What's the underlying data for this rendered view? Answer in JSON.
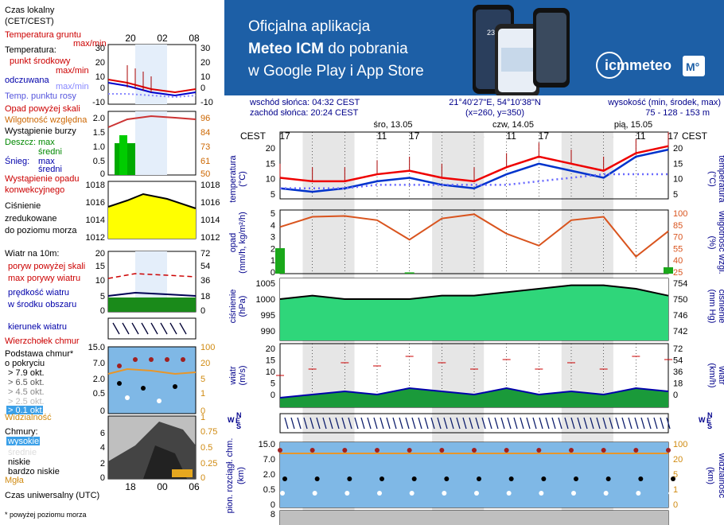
{
  "banner": {
    "line1": "Oficjalna aplikacja",
    "line2a": "Meteo ICM",
    "line2b": " do pobrania",
    "line3": "w Google Play i App Store",
    "brand": "icmmeteo",
    "brand_badge": "M°",
    "phone_temp": "23°"
  },
  "header": {
    "sunrise": "wschód słońca: 04:32 CEST",
    "sunset": "zachód słońca: 20:24 CEST",
    "coords": "21°40'27\"E, 54°10'38\"N",
    "grid": "(x=260, y=350)",
    "elev_label": "wysokość (min, środek, max)",
    "elev_values": "75 - 128 - 153 m",
    "tz_left": "CEST",
    "tz_right": "CEST",
    "days": [
      "śro, 13.05",
      "czw, 14.05",
      "pią, 15.05"
    ],
    "hours": [
      "17",
      "23",
      "05",
      "11",
      "17",
      "23",
      "05",
      "11",
      "17",
      "23",
      "05",
      "11",
      "17"
    ]
  },
  "legend": {
    "time_local": "Czas lokalny",
    "time_local2": "(CET/CEST)",
    "hours_top": [
      "20",
      "02",
      "08"
    ],
    "ground_temp": "Temperatura gruntu",
    "ground_temp2": "max/min",
    "temp": "Temperatura:",
    "temp_mid": "punkt środkowy",
    "temp_range": "max/min",
    "feels": "odczuwana",
    "feels_range": "max/min",
    "dew": "Temp. punktu rosy",
    "temp_ticks": [
      "30",
      "20",
      "10",
      "0",
      "-10"
    ],
    "precip_above": "Opad powyżej skali",
    "humidity": "Wilgotność względna",
    "storm": "Wystąpienie burzy",
    "rain": "Deszcz:",
    "max": "max",
    "avg": "średni",
    "snow": "Śnieg:",
    "precip_occ": "Wystąpienie opadu",
    "convective": "konwekcyjnego",
    "precip_ticks": [
      "2.0",
      "1.5",
      "1.0",
      "0.5",
      "0"
    ],
    "hum_ticks": [
      "96",
      "84",
      "73",
      "61",
      "50"
    ],
    "pressure": "Ciśnienie",
    "pressure2": "zredukowane",
    "pressure3": "do poziomu morza",
    "press_ticks": [
      "1018",
      "1016",
      "1014",
      "1012"
    ],
    "wind10": "Wiatr na 10m:",
    "gust_above": "poryw powyżej skali",
    "gust_max": "max porywy wiatru",
    "wind_avg": "prędkość wiatru",
    "wind_avg2": "w środku obszaru",
    "wind_ticks": [
      "20",
      "15",
      "10",
      "5",
      "0"
    ],
    "wind_ticks_r": [
      "72",
      "54",
      "36",
      "18",
      "0"
    ],
    "wind_dir": "kierunek wiatru",
    "cloud_top": "Wierzchołek chmur",
    "cloud_base": "Podstawa chmur*",
    "cloud_cov": "o pokryciu",
    "okt": [
      "> 7.9 okt.",
      "> 6.5 okt.",
      "> 4.5 okt.",
      "> 2.5 okt.",
      "> 0.1 okt."
    ],
    "cb_ticks": [
      "15.0",
      "7.0",
      "2.0",
      "0.5",
      "0"
    ],
    "vis_ticks": [
      "100",
      "20",
      "5",
      "1",
      "0"
    ],
    "visibility": "Widzialność",
    "clouds": "Chmury:",
    "high": "wysokie",
    "mid": "średnie",
    "low": "niskie",
    "vlow": "bardzo niskie",
    "fog": "Mgła",
    "cl_ticks": [
      "8",
      "6",
      "4",
      "2",
      "0"
    ],
    "fog_ticks": [
      "1",
      "0.75",
      "0.5",
      "0.25",
      "0"
    ],
    "utc": "Czas uniwersalny (UTC)",
    "hours_bottom": [
      "18",
      "00",
      "06"
    ],
    "footnote": "* powyżej poziomu morza"
  },
  "axes": {
    "temp_l": "temperatura",
    "temp_lu": "(°C)",
    "temp_ticks": [
      "20",
      "15",
      "10",
      "5"
    ],
    "precip_l": "opad",
    "precip_lu": "(mm/h, kg/m²/h)",
    "precip_ticks": [
      "5",
      "4",
      "3",
      "2",
      "1",
      "0"
    ],
    "hum_r": "wilgotność wzgl.",
    "hum_ru": "(%)",
    "hum_ticks": [
      "100",
      "85",
      "70",
      "55",
      "40",
      "25"
    ],
    "press_l": "ciśnienie",
    "press_lu": "(hPa)",
    "press_ticks": [
      "1005",
      "1000",
      "995",
      "990"
    ],
    "press_r": "ciśnienie",
    "press_ru": "(mm Hg)",
    "press_ticks_r": [
      "754",
      "750",
      "746",
      "742"
    ],
    "wind_l": "wiatr",
    "wind_lu": "(m/s)",
    "wind_ticks": [
      "20",
      "15",
      "10",
      "5",
      "0"
    ],
    "wind_r": "wiatr",
    "wind_ru": "(km/h)",
    "wind_ticks_r": [
      "72",
      "54",
      "36",
      "18",
      "0"
    ],
    "cb_l": "pion. rozciągł. chm.",
    "cb_lu": "(km)",
    "cb_ticks": [
      "15.0",
      "7.0",
      "2.0",
      "0.5",
      "0"
    ],
    "vis_r": "widzialność",
    "vis_ru": "(km)",
    "vis_ticks": [
      "100",
      "20",
      "5",
      "1",
      "0"
    ],
    "clouds_ticks": [
      "8"
    ],
    "compass": "WNSE"
  },
  "chart_data": {
    "type": "line",
    "x_hours_cest": [
      "17",
      "23",
      "05",
      "11",
      "17",
      "23",
      "05",
      "11",
      "17",
      "23",
      "05",
      "11",
      "17"
    ],
    "temperature": {
      "ylim": [
        3,
        22
      ],
      "mid": [
        9,
        8,
        8,
        10,
        11,
        9,
        8,
        12,
        15,
        13,
        11,
        16,
        18
      ],
      "feels": [
        6,
        5,
        6,
        8,
        9,
        7,
        6,
        10,
        13,
        11,
        9,
        15,
        17
      ],
      "dew": [
        6,
        6,
        6,
        7,
        7,
        7,
        7,
        7,
        8,
        9,
        10,
        10,
        10
      ]
    },
    "precipitation": {
      "ylim": [
        0,
        5
      ],
      "values": [
        2.0,
        0,
        0,
        0,
        0.1,
        0,
        0,
        0,
        0,
        0,
        0,
        0,
        0.5
      ]
    },
    "humidity": {
      "ylim": [
        25,
        100
      ],
      "values": [
        80,
        92,
        93,
        88,
        65,
        90,
        95,
        72,
        58,
        88,
        92,
        45,
        75
      ]
    },
    "pressure": {
      "ylim": [
        988,
        1006
      ],
      "values": [
        1000,
        1001,
        1000,
        1000,
        1000,
        1001,
        1001,
        1002,
        1003,
        1004,
        1004,
        1003,
        1001
      ]
    },
    "wind": {
      "ylim": [
        0,
        20
      ],
      "avg": [
        3,
        4,
        5,
        4,
        6,
        5,
        4,
        6,
        4,
        5,
        4,
        6,
        5
      ],
      "gust": [
        10,
        12,
        14,
        13,
        16,
        14,
        12,
        15,
        12,
        14,
        12,
        16,
        15
      ]
    },
    "visibility": {
      "ylim": [
        0,
        100
      ],
      "values": [
        20,
        20,
        20,
        20,
        20,
        20,
        20,
        20,
        20,
        20,
        20,
        20,
        20
      ]
    }
  }
}
